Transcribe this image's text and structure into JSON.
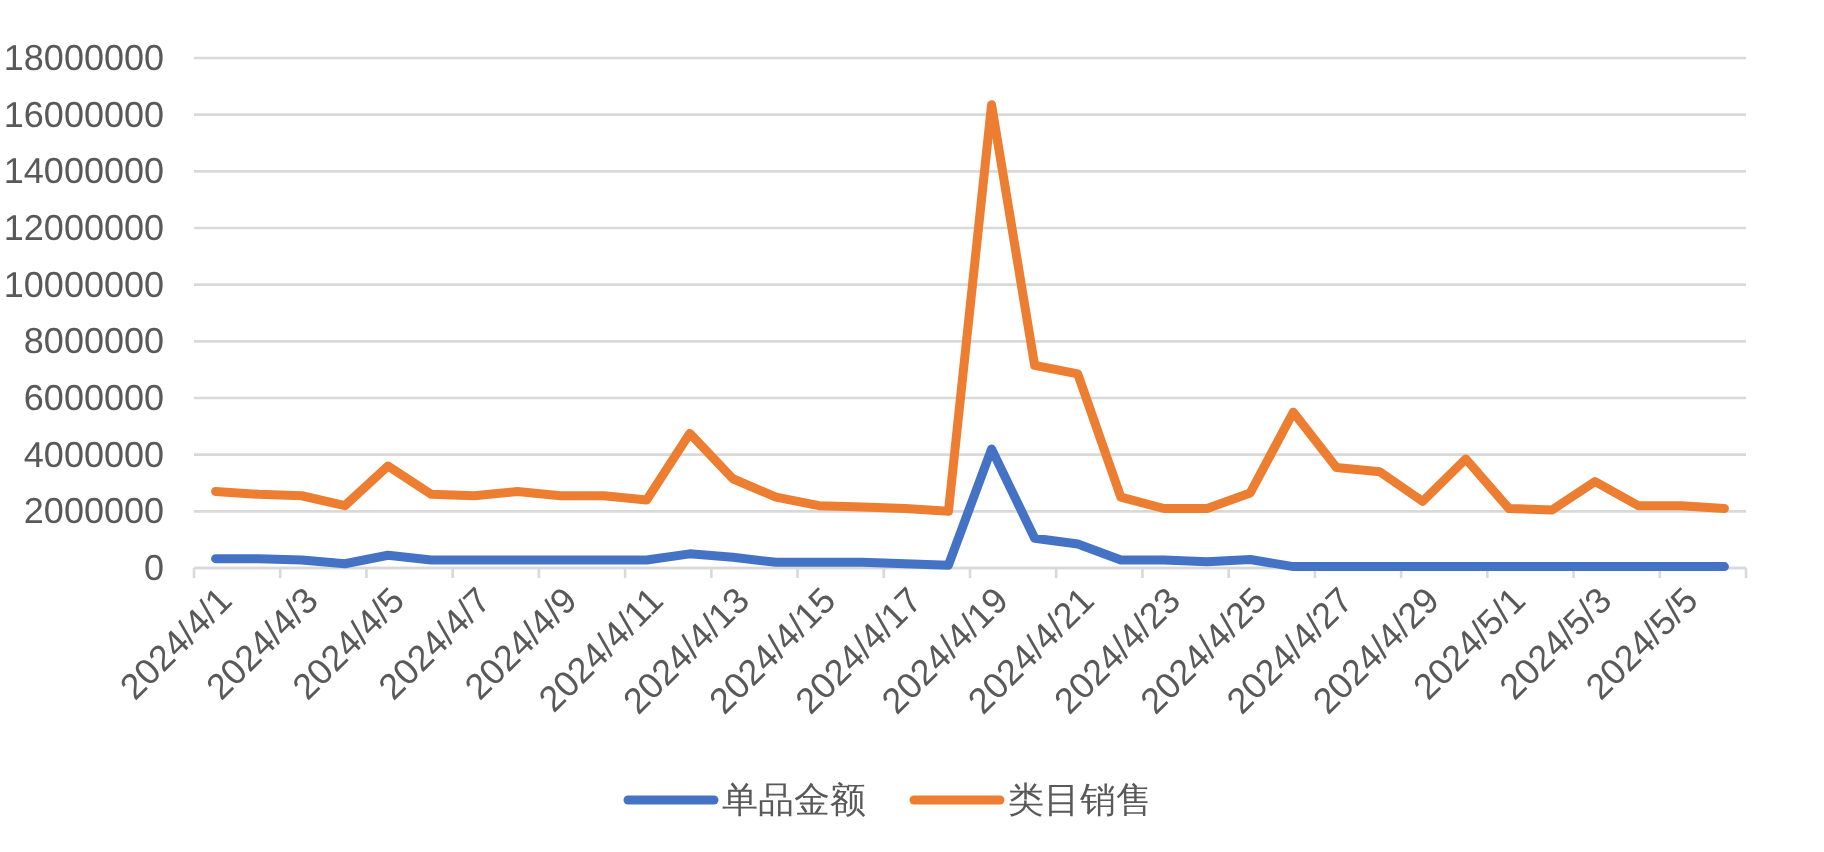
{
  "chart_data": {
    "type": "line",
    "categories": [
      "2024/4/1",
      null,
      "2024/4/3",
      null,
      "2024/4/5",
      null,
      "2024/4/7",
      null,
      "2024/4/9",
      null,
      "2024/4/11",
      null,
      "2024/4/13",
      null,
      "2024/4/15",
      null,
      "2024/4/17",
      null,
      "2024/4/19",
      null,
      "2024/4/21",
      null,
      "2024/4/23",
      null,
      "2024/4/25",
      null,
      "2024/4/27",
      null,
      "2024/4/29",
      null,
      "2024/5/1",
      null,
      "2024/5/3",
      null,
      "2024/5/5",
      null
    ],
    "series": [
      {
        "name": "单品金额",
        "color": "#4472c4",
        "values": [
          330000,
          330000,
          280000,
          150000,
          450000,
          280000,
          280000,
          280000,
          280000,
          280000,
          280000,
          500000,
          380000,
          200000,
          200000,
          200000,
          150000,
          100000,
          4200000,
          1050000,
          850000,
          280000,
          280000,
          220000,
          300000,
          50000,
          50000,
          50000,
          50000,
          50000,
          50000,
          50000,
          50000,
          50000,
          50000,
          50000
        ]
      },
      {
        "name": "类目销售",
        "color": "#ed7d31",
        "values": [
          2700000,
          2600000,
          2550000,
          2200000,
          3600000,
          2600000,
          2550000,
          2700000,
          2550000,
          2550000,
          2400000,
          4750000,
          3150000,
          2500000,
          2200000,
          2150000,
          2100000,
          2000000,
          16350000,
          7150000,
          6850000,
          2500000,
          2100000,
          2100000,
          2650000,
          5500000,
          3550000,
          3400000,
          2350000,
          3850000,
          2100000,
          2050000,
          3050000,
          2200000,
          2200000,
          2100000
        ]
      }
    ],
    "ylim": [
      0,
      18000000
    ],
    "yticks": [
      0,
      2000000,
      4000000,
      6000000,
      8000000,
      10000000,
      12000000,
      14000000,
      16000000,
      18000000
    ],
    "grid": "y",
    "legend": "bottom"
  }
}
